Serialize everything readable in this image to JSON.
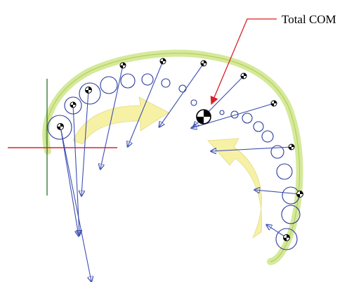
{
  "annotation": {
    "total_com_label": "Total COM"
  },
  "colors": {
    "background": "#ffffff",
    "trajectory_light": "#c8e27a",
    "trajectory_outline": "#a6c94a",
    "segment_circles": "#2a3a9c",
    "force_vectors": "#3d4fb0",
    "rotation_arrows": "#f7f1a6",
    "reference_line_red": "#e4202b",
    "reference_line_green": "#3c7a3c",
    "pointer_red": "#d91f28",
    "com_marker": "#000000"
  },
  "icons": {
    "com_marker": "com-marker-icon",
    "vector_head": "arrowhead-icon"
  }
}
